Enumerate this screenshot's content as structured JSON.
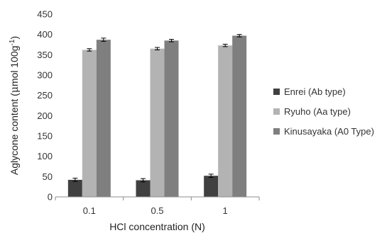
{
  "chart_data": {
    "type": "bar",
    "categories": [
      "0.1",
      "0.5",
      "1"
    ],
    "series": [
      {
        "name": "Enrei (Ab type)",
        "values": [
          42,
          41,
          52
        ],
        "errors": [
          4,
          4,
          4
        ],
        "color": "#404040"
      },
      {
        "name": "Ryuho (Aa type)",
        "values": [
          362,
          365,
          373
        ],
        "errors": [
          3,
          3,
          3
        ],
        "color": "#b3b3b3"
      },
      {
        "name": "Kinusayaka (A0 Type)",
        "values": [
          387,
          385,
          397
        ],
        "errors": [
          4,
          3,
          3
        ],
        "color": "#7f7f7f"
      }
    ],
    "xlabel": "HCl concentration (N)",
    "ylabel_main": "Aglycone content (",
    "ylabel_mu": "μ",
    "ylabel_rest": "mol 100g",
    "ylabel_sup": "-1",
    "ylabel_close": ")",
    "ylim": [
      0,
      450
    ],
    "yticks": [
      0,
      50,
      100,
      150,
      200,
      250,
      300,
      350,
      400,
      450
    ],
    "grid": false,
    "legend_position": "right"
  }
}
